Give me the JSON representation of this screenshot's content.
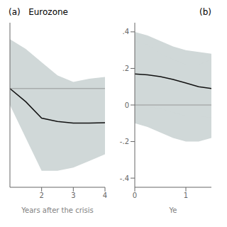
{
  "chart_data": [
    {
      "type": "line",
      "title": "(a)   Eurozone",
      "xlabel": "Years after the crisis",
      "x": [
        1,
        1.5,
        2,
        2.5,
        3,
        3.5,
        4
      ],
      "values": [
        1.0,
        0.6,
        0.1,
        0.0,
        -0.05,
        -0.05,
        -0.04
      ],
      "color": "#111111",
      "bands": [
        {
          "lower": [
            0.5,
            -0.5,
            -1.5,
            -1.5,
            -1.4,
            -1.2,
            -1.0
          ],
          "upper": [
            2.5,
            2.2,
            1.8,
            1.4,
            1.2,
            1.3,
            1.35
          ],
          "color": "#d0d8d8"
        }
      ],
      "ref_line": {
        "y": 1.0,
        "color": "#888888"
      },
      "xlim": [
        1,
        4
      ],
      "xticks": [
        2,
        3,
        4
      ],
      "ylim": [
        -2,
        3
      ],
      "tick_labels": "x"
    },
    {
      "type": "line",
      "title": "(b)",
      "xlabel": "Ye",
      "x": [
        0,
        0.25,
        0.5,
        0.75,
        1.0,
        1.25,
        1.5
      ],
      "values": [
        0.17,
        0.165,
        0.155,
        0.14,
        0.12,
        0.1,
        0.09
      ],
      "color": "#111111",
      "bands": [
        {
          "lower": [
            -0.1,
            -0.12,
            -0.15,
            -0.18,
            -0.2,
            -0.2,
            -0.18
          ],
          "upper": [
            0.4,
            0.38,
            0.35,
            0.32,
            0.3,
            0.29,
            0.28
          ],
          "color": "#d0d8d8"
        },
        {
          "lower": [
            0.0,
            -0.01,
            -0.02,
            -0.04,
            -0.06,
            -0.06,
            -0.07
          ],
          "upper": [
            0.35,
            0.33,
            0.28,
            0.25,
            0.22,
            0.22,
            0.25
          ],
          "color": "#d0d8d8"
        }
      ],
      "ref_line": {
        "y": 0.0,
        "color": "#888888"
      },
      "xlim": [
        0,
        1.5
      ],
      "xticks": [
        0,
        1
      ],
      "ylim": [
        -0.45,
        0.45
      ],
      "yticks": [
        {
          "value": -0.4,
          "label": "-.4"
        },
        {
          "value": -0.2,
          "label": "-.2"
        },
        0,
        {
          "value": 0.2,
          "label": ".2"
        },
        {
          "value": 0.4,
          "label": ".4"
        }
      ]
    }
  ]
}
